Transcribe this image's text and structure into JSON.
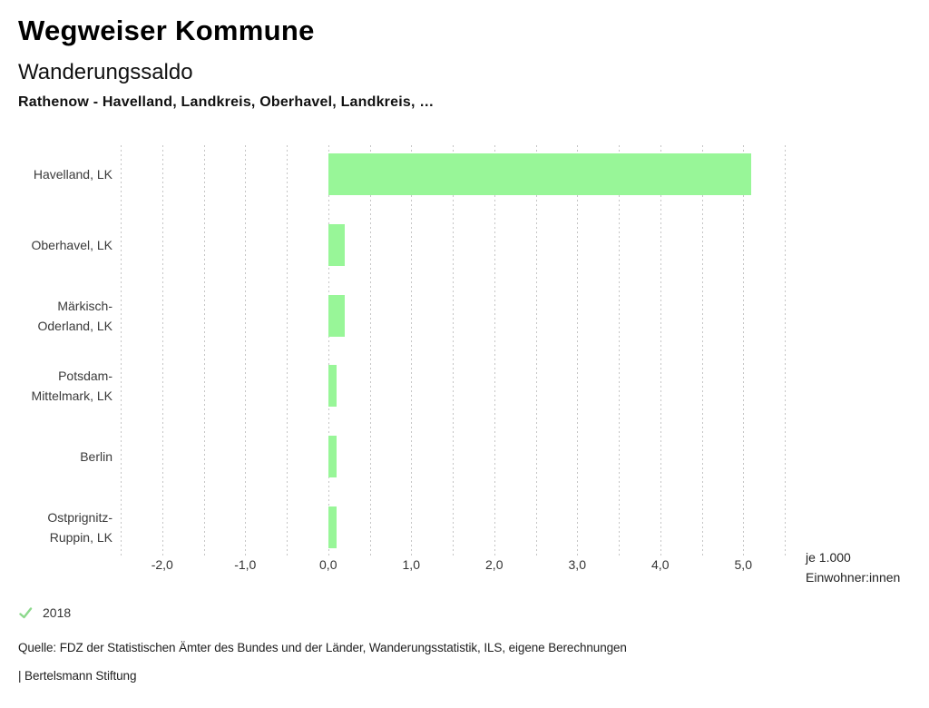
{
  "header": {
    "app_title": "Wegweiser Kommune",
    "chart_title": "Wanderungssaldo",
    "subtitle": "Rathenow - Havelland, Landkreis, Oberhavel, Landkreis, …"
  },
  "chart_data": {
    "type": "bar",
    "orientation": "horizontal",
    "title": "Wanderungssaldo",
    "subtitle": "Rathenow - Havelland, Landkreis, Oberhavel, Landkreis, …",
    "categories": [
      "Havelland, LK",
      "Oberhavel, LK",
      "Märkisch-Oderland, LK",
      "Potsdam-Mittelmark, LK",
      "Berlin",
      "Ostprignitz-Ruppin, LK"
    ],
    "category_label_lines": [
      [
        "Havelland, LK"
      ],
      [
        "Oberhavel, LK"
      ],
      [
        "Märkisch-",
        "Oderland, LK"
      ],
      [
        "Potsdam-",
        "Mittelmark, LK"
      ],
      [
        "Berlin"
      ],
      [
        "Ostprignitz-",
        "Ruppin, LK"
      ]
    ],
    "series": [
      {
        "name": "2018",
        "values": [
          5.1,
          0.2,
          0.2,
          0.1,
          0.1,
          0.1
        ]
      }
    ],
    "xlabel": "je 1.000 Einwohner:innen",
    "x_unit_lines": [
      "je 1.000",
      "Einwohner:innen"
    ],
    "xlim": [
      -2.5,
      5.5
    ],
    "grid_step": 0.5,
    "grid": true,
    "tick_values": [
      -2,
      -1,
      0,
      1,
      2,
      3,
      4,
      5
    ],
    "tick_labels": [
      "-2,0",
      "-1,0",
      "0,0",
      "1,0",
      "2,0",
      "3,0",
      "4,0",
      "5,0"
    ],
    "bar_color": "#98f698",
    "legend": {
      "position": "bottom-left",
      "items": [
        {
          "label": "2018",
          "icon": "check",
          "color": "#8cd98c"
        }
      ]
    }
  },
  "footer": {
    "source": "Quelle: FDZ der Statistischen Ämter des Bundes und der Länder, Wanderungsstatistik, ILS, eigene Berechnungen",
    "publisher": "| Bertelsmann Stiftung"
  }
}
